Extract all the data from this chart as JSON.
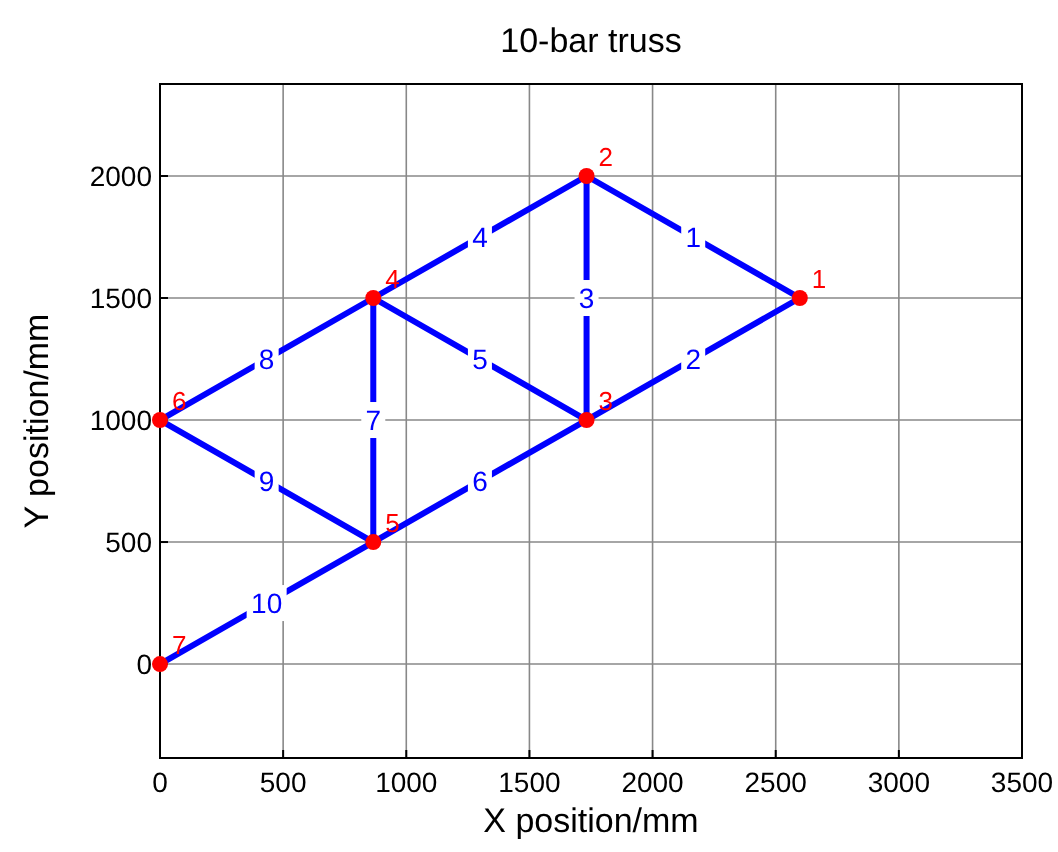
{
  "chart_data": {
    "type": "line",
    "title": "10-bar truss",
    "xlabel": "X position/mm",
    "ylabel": "Y position/mm",
    "xlim": [
      0,
      3500
    ],
    "xticks": [
      0,
      500,
      1000,
      1500,
      2000,
      2500,
      3000,
      3500
    ],
    "ylim": [
      -385,
      2377
    ],
    "yticks": [
      0,
      500,
      1000,
      1500,
      2000
    ],
    "grid": true,
    "line_style": "solid",
    "series": [
      {
        "name": "1",
        "color": "#0000ff",
        "x": [
          2598,
          1732
        ],
        "values": [
          1500,
          2000
        ]
      },
      {
        "name": "2",
        "color": "#0000ff",
        "x": [
          2598,
          1732
        ],
        "values": [
          1500,
          1000
        ]
      },
      {
        "name": "3",
        "color": "#0000ff",
        "x": [
          1732,
          1732
        ],
        "values": [
          2000,
          1000
        ]
      },
      {
        "name": "4",
        "color": "#0000ff",
        "x": [
          1732,
          866
        ],
        "values": [
          2000,
          1500
        ]
      },
      {
        "name": "5",
        "color": "#0000ff",
        "x": [
          1732,
          866
        ],
        "values": [
          1000,
          1500
        ]
      },
      {
        "name": "6",
        "color": "#0000ff",
        "x": [
          1732,
          866
        ],
        "values": [
          1000,
          500
        ]
      },
      {
        "name": "7",
        "color": "#0000ff",
        "x": [
          866,
          866
        ],
        "values": [
          1500,
          500
        ]
      },
      {
        "name": "8",
        "color": "#0000ff",
        "x": [
          866,
          0
        ],
        "values": [
          1500,
          1000
        ]
      },
      {
        "name": "9",
        "color": "#0000ff",
        "x": [
          866,
          0
        ],
        "values": [
          500,
          1000
        ]
      },
      {
        "name": "10",
        "color": "#0000ff",
        "x": [
          866,
          0
        ],
        "values": [
          500,
          0
        ]
      },
      {
        "type": "scatter",
        "marker": "circle",
        "color": "#ff0000",
        "x": [
          2598,
          1732,
          1732,
          866,
          866,
          0,
          0
        ],
        "values": [
          1500,
          2000,
          1000,
          1500,
          500,
          1000,
          0
        ]
      }
    ],
    "annotations": [
      {
        "text": "1",
        "x": 2598,
        "y": 1500
      },
      {
        "text": "2",
        "x": 1732,
        "y": 2000
      },
      {
        "text": "3",
        "x": 1732,
        "y": 1000
      },
      {
        "text": "4",
        "x": 866,
        "y": 1500
      },
      {
        "text": "5",
        "x": 866,
        "y": 500
      },
      {
        "text": "6",
        "x": 0,
        "y": 1000
      },
      {
        "text": "7",
        "x": 0,
        "y": 0
      }
    ]
  }
}
